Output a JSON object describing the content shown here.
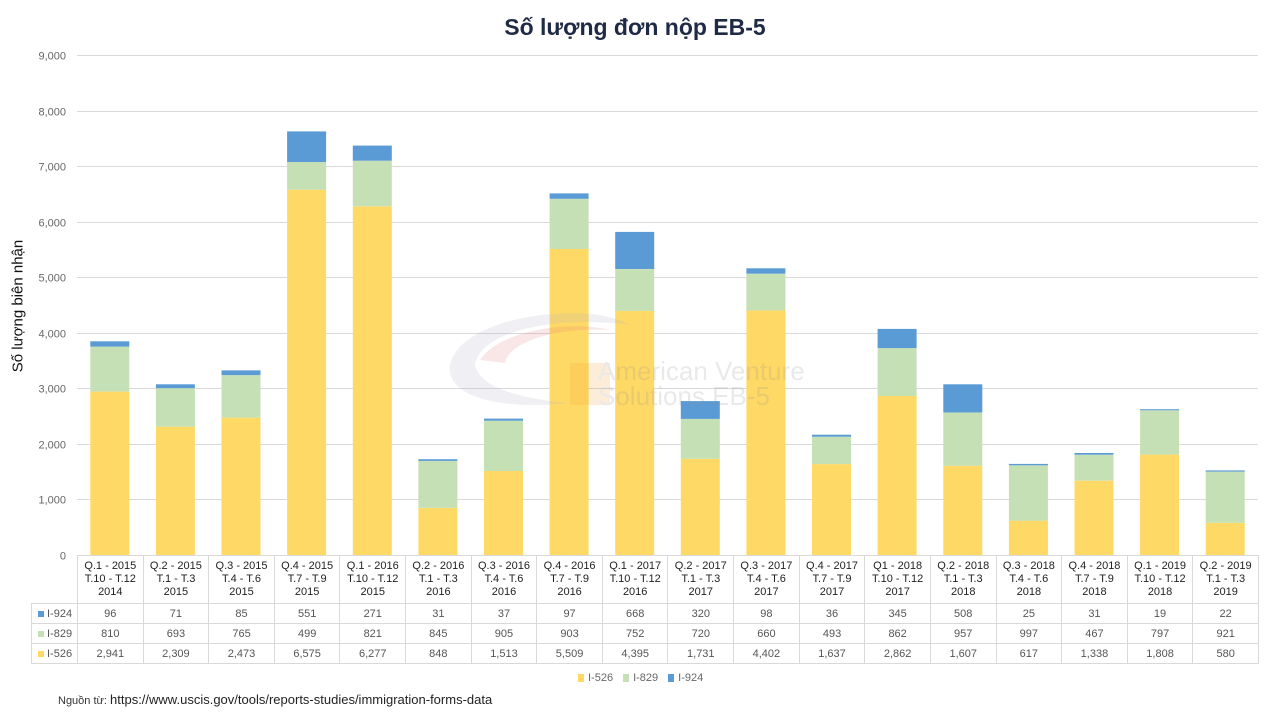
{
  "chart_data": {
    "type": "bar",
    "stacked": true,
    "title": "Số lượng đơn nộp EB-5",
    "xlabel": "",
    "ylabel": "Số lượng biên nhận",
    "ylim": [
      0,
      9000
    ],
    "yticks": [
      "0",
      "1,000",
      "2,000",
      "3,000",
      "4,000",
      "5,000",
      "6,000",
      "7,000",
      "8,000",
      "9,000"
    ],
    "ytick_values": [
      0,
      1000,
      2000,
      3000,
      4000,
      5000,
      6000,
      7000,
      8000,
      9000
    ],
    "grid": true,
    "categories": [
      [
        "Q.1 - 2015",
        "T.10 - T.12",
        "2014"
      ],
      [
        "Q.2 - 2015",
        "T.1 - T.3",
        "2015"
      ],
      [
        "Q.3 - 2015",
        "T.4 - T.6",
        "2015"
      ],
      [
        "Q.4 - 2015",
        "T.7 - T.9",
        "2015"
      ],
      [
        "Q.1 - 2016",
        "T.10 - T.12",
        "2015"
      ],
      [
        "Q.2 - 2016",
        "T.1 - T.3",
        "2016"
      ],
      [
        "Q.3 - 2016",
        "T.4 - T.6",
        "2016"
      ],
      [
        "Q.4 - 2016",
        "T.7 - T.9",
        "2016"
      ],
      [
        "Q.1 - 2017",
        "T.10 - T.12",
        "2016"
      ],
      [
        "Q.2 - 2017",
        "T.1 - T.3",
        "2017"
      ],
      [
        "Q.3 - 2017",
        "T.4 - T.6",
        "2017"
      ],
      [
        "Q.4 - 2017",
        "T.7 - T.9",
        "2017"
      ],
      [
        "Q1 - 2018",
        "T.10 - T.12",
        "2017"
      ],
      [
        "Q.2 - 2018",
        "T.1 - T.3",
        "2018"
      ],
      [
        "Q.3 - 2018",
        "T.4 - T.6",
        "2018"
      ],
      [
        "Q.4 - 2018",
        "T.7 - T.9",
        "2018"
      ],
      [
        "Q.1 - 2019",
        "T.10 - T.12",
        "2018"
      ],
      [
        "Q.2 - 2019",
        "T.1 - T.3",
        "2019"
      ]
    ],
    "series": [
      {
        "name": "I-526",
        "color": "#ffd966",
        "values": [
          2941,
          2309,
          2473,
          6575,
          6277,
          848,
          1513,
          5509,
          4395,
          1731,
          4402,
          1637,
          2862,
          1607,
          617,
          1338,
          1808,
          580
        ],
        "labels": [
          "2,941",
          "2,309",
          "2,473",
          "6,575",
          "6,277",
          "848",
          "1,513",
          "5,509",
          "4,395",
          "1,731",
          "4,402",
          "1,637",
          "2,862",
          "1,607",
          "617",
          "1,338",
          "1,808",
          "580"
        ]
      },
      {
        "name": "I-829",
        "color": "#c5e0b4",
        "values": [
          810,
          693,
          765,
          499,
          821,
          845,
          905,
          903,
          752,
          720,
          660,
          493,
          862,
          957,
          997,
          467,
          797,
          921
        ],
        "labels": [
          "810",
          "693",
          "765",
          "499",
          "821",
          "845",
          "905",
          "903",
          "752",
          "720",
          "660",
          "493",
          "862",
          "957",
          "997",
          "467",
          "797",
          "921"
        ]
      },
      {
        "name": "I-924",
        "color": "#5b9bd5",
        "values": [
          96,
          71,
          85,
          551,
          271,
          31,
          37,
          97,
          668,
          320,
          98,
          36,
          345,
          508,
          25,
          31,
          19,
          22
        ],
        "labels": [
          "96",
          "71",
          "85",
          "551",
          "271",
          "31",
          "37",
          "97",
          "668",
          "320",
          "98",
          "36",
          "345",
          "508",
          "25",
          "31",
          "19",
          "22"
        ]
      }
    ],
    "table_row_order": [
      "I-924",
      "I-829",
      "I-526"
    ],
    "legend": {
      "placement": "bottom",
      "entries": [
        "I-526",
        "I-829",
        "I-924"
      ]
    }
  },
  "watermark": {
    "line1": "American Venture",
    "line2": "Solutions EB-5"
  },
  "source": {
    "prefix": "Nguồn từ:",
    "url": "https://www.uscis.gov/tools/reports-studies/immigration-forms-data"
  }
}
